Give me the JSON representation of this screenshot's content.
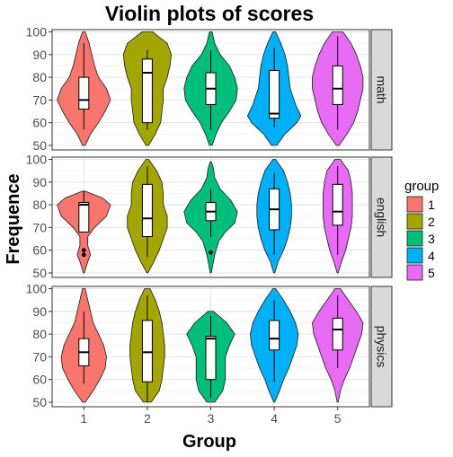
{
  "chart_data": {
    "type": "violin",
    "title": "Violin plots of scores",
    "xlabel": "Group",
    "ylabel": "Frequence",
    "categories": [
      "1",
      "2",
      "3",
      "4",
      "5"
    ],
    "group_colors": [
      "#F8766D",
      "#A3A500",
      "#00BF7D",
      "#00B0F6",
      "#E76BF3"
    ],
    "legend": {
      "title": "group",
      "position": "right",
      "labels": [
        "1",
        "2",
        "3",
        "4",
        "5"
      ]
    },
    "ylim": [
      48,
      101
    ],
    "yticks": [
      50,
      60,
      70,
      80,
      90,
      100
    ],
    "grid": true,
    "panels": [
      {
        "subject": "math",
        "groups": [
          {
            "group": "1",
            "min": 57,
            "q1": 66,
            "median": 70,
            "q3": 80,
            "max": 95,
            "lo": 50,
            "hi": 100,
            "outliers": [],
            "density": [
              [
                50,
                0.05
              ],
              [
                55,
                0.25
              ],
              [
                60,
                0.55
              ],
              [
                65,
                0.8
              ],
              [
                70,
                1.0
              ],
              [
                75,
                0.85
              ],
              [
                80,
                0.55
              ],
              [
                85,
                0.4
              ],
              [
                90,
                0.3
              ],
              [
                95,
                0.2
              ],
              [
                100,
                0.05
              ]
            ]
          },
          {
            "group": "2",
            "min": 57,
            "q1": 60,
            "median": 82,
            "q3": 88,
            "max": 92,
            "lo": 50,
            "hi": 100,
            "outliers": [],
            "density": [
              [
                50,
                0.05
              ],
              [
                55,
                0.3
              ],
              [
                60,
                0.5
              ],
              [
                65,
                0.55
              ],
              [
                70,
                0.6
              ],
              [
                75,
                0.6
              ],
              [
                80,
                0.75
              ],
              [
                85,
                0.85
              ],
              [
                90,
                0.9
              ],
              [
                95,
                0.75
              ],
              [
                100,
                0.2
              ]
            ]
          },
          {
            "group": "3",
            "min": 57,
            "q1": 68,
            "median": 75,
            "q3": 82,
            "max": 92,
            "lo": 50,
            "hi": 100,
            "outliers": [],
            "density": [
              [
                50,
                0.05
              ],
              [
                55,
                0.2
              ],
              [
                60,
                0.4
              ],
              [
                65,
                0.7
              ],
              [
                70,
                0.95
              ],
              [
                75,
                1.0
              ],
              [
                80,
                0.9
              ],
              [
                85,
                0.7
              ],
              [
                90,
                0.35
              ],
              [
                95,
                0.15
              ],
              [
                100,
                0.05
              ]
            ]
          },
          {
            "group": "4",
            "min": 58,
            "q1": 62,
            "median": 64,
            "q3": 83,
            "max": 93,
            "lo": 50,
            "hi": 100,
            "outliers": [],
            "density": [
              [
                50,
                0.1
              ],
              [
                55,
                0.4
              ],
              [
                60,
                0.85
              ],
              [
                63,
                1.0
              ],
              [
                68,
                0.8
              ],
              [
                75,
                0.6
              ],
              [
                80,
                0.55
              ],
              [
                85,
                0.5
              ],
              [
                90,
                0.4
              ],
              [
                95,
                0.25
              ],
              [
                100,
                0.05
              ]
            ]
          },
          {
            "group": "5",
            "min": 57,
            "q1": 68,
            "median": 75,
            "q3": 85,
            "max": 98,
            "lo": 50,
            "hi": 100,
            "outliers": [],
            "density": [
              [
                50,
                0.05
              ],
              [
                55,
                0.35
              ],
              [
                60,
                0.6
              ],
              [
                65,
                0.75
              ],
              [
                70,
                0.85
              ],
              [
                75,
                0.95
              ],
              [
                80,
                0.95
              ],
              [
                85,
                0.85
              ],
              [
                90,
                0.7
              ],
              [
                95,
                0.5
              ],
              [
                100,
                0.2
              ]
            ]
          }
        ]
      },
      {
        "subject": "english",
        "groups": [
          {
            "group": "1",
            "min": 68,
            "q1": 68,
            "median": 80,
            "q3": 81,
            "max": 86,
            "lo": 50,
            "hi": 86,
            "outliers": [
              58,
              60
            ],
            "density": [
              [
                50,
                0.02
              ],
              [
                55,
                0.15
              ],
              [
                58,
                0.25
              ],
              [
                62,
                0.15
              ],
              [
                66,
                0.15
              ],
              [
                70,
                0.4
              ],
              [
                75,
                0.85
              ],
              [
                80,
                1.0
              ],
              [
                83,
                0.7
              ],
              [
                86,
                0.05
              ]
            ]
          },
          {
            "group": "2",
            "min": 57,
            "q1": 66,
            "median": 74,
            "q3": 89,
            "max": 97,
            "lo": 50,
            "hi": 100,
            "outliers": [],
            "density": [
              [
                50,
                0.02
              ],
              [
                55,
                0.25
              ],
              [
                60,
                0.45
              ],
              [
                65,
                0.6
              ],
              [
                70,
                0.75
              ],
              [
                75,
                0.75
              ],
              [
                80,
                0.6
              ],
              [
                85,
                0.6
              ],
              [
                90,
                0.55
              ],
              [
                95,
                0.35
              ],
              [
                100,
                0.05
              ]
            ]
          },
          {
            "group": "3",
            "min": 66,
            "q1": 73,
            "median": 77,
            "q3": 81,
            "max": 87,
            "lo": 50,
            "hi": 99,
            "outliers": [
              59
            ],
            "density": [
              [
                50,
                0.02
              ],
              [
                58,
                0.15
              ],
              [
                64,
                0.3
              ],
              [
                68,
                0.55
              ],
              [
                72,
                0.9
              ],
              [
                77,
                1.0
              ],
              [
                82,
                0.75
              ],
              [
                87,
                0.35
              ],
              [
                92,
                0.15
              ],
              [
                96,
                0.1
              ],
              [
                99,
                0.02
              ]
            ]
          },
          {
            "group": "4",
            "min": 58,
            "q1": 69,
            "median": 78,
            "q3": 87,
            "max": 94,
            "lo": 50,
            "hi": 100,
            "outliers": [],
            "density": [
              [
                50,
                0.02
              ],
              [
                55,
                0.15
              ],
              [
                60,
                0.35
              ],
              [
                65,
                0.5
              ],
              [
                70,
                0.6
              ],
              [
                75,
                0.65
              ],
              [
                80,
                0.65
              ],
              [
                85,
                0.6
              ],
              [
                90,
                0.5
              ],
              [
                95,
                0.35
              ],
              [
                100,
                0.05
              ]
            ]
          },
          {
            "group": "5",
            "min": 58,
            "q1": 71,
            "median": 77,
            "q3": 89,
            "max": 97,
            "lo": 50,
            "hi": 100,
            "outliers": [],
            "density": [
              [
                50,
                0.02
              ],
              [
                55,
                0.15
              ],
              [
                60,
                0.3
              ],
              [
                65,
                0.4
              ],
              [
                70,
                0.5
              ],
              [
                75,
                0.55
              ],
              [
                80,
                0.55
              ],
              [
                85,
                0.55
              ],
              [
                90,
                0.5
              ],
              [
                95,
                0.4
              ],
              [
                100,
                0.1
              ]
            ]
          }
        ]
      },
      {
        "subject": "physics",
        "groups": [
          {
            "group": "1",
            "min": 58,
            "q1": 66,
            "median": 72,
            "q3": 78,
            "max": 90,
            "lo": 50,
            "hi": 100,
            "outliers": [],
            "density": [
              [
                50,
                0.05
              ],
              [
                55,
                0.35
              ],
              [
                60,
                0.6
              ],
              [
                65,
                0.8
              ],
              [
                70,
                0.85
              ],
              [
                75,
                0.75
              ],
              [
                80,
                0.55
              ],
              [
                85,
                0.35
              ],
              [
                90,
                0.25
              ],
              [
                95,
                0.15
              ],
              [
                100,
                0.05
              ]
            ]
          },
          {
            "group": "2",
            "min": 50,
            "q1": 59,
            "median": 72,
            "q3": 86,
            "max": 97,
            "lo": 50,
            "hi": 100,
            "outliers": [],
            "density": [
              [
                50,
                0.15
              ],
              [
                55,
                0.45
              ],
              [
                60,
                0.55
              ],
              [
                65,
                0.6
              ],
              [
                70,
                0.65
              ],
              [
                75,
                0.65
              ],
              [
                80,
                0.6
              ],
              [
                85,
                0.55
              ],
              [
                90,
                0.45
              ],
              [
                95,
                0.3
              ],
              [
                100,
                0.1
              ]
            ]
          },
          {
            "group": "3",
            "min": 52,
            "q1": 60,
            "median": 78,
            "q3": 79,
            "max": 88,
            "lo": 50,
            "hi": 90,
            "outliers": [],
            "density": [
              [
                50,
                0.15
              ],
              [
                55,
                0.45
              ],
              [
                60,
                0.55
              ],
              [
                65,
                0.55
              ],
              [
                70,
                0.55
              ],
              [
                75,
                0.7
              ],
              [
                80,
                0.9
              ],
              [
                85,
                0.6
              ],
              [
                90,
                0.1
              ]
            ]
          },
          {
            "group": "4",
            "min": 59,
            "q1": 73,
            "median": 78,
            "q3": 86,
            "max": 95,
            "lo": 50,
            "hi": 100,
            "outliers": [],
            "density": [
              [
                50,
                0.02
              ],
              [
                55,
                0.2
              ],
              [
                60,
                0.35
              ],
              [
                65,
                0.55
              ],
              [
                70,
                0.7
              ],
              [
                75,
                0.85
              ],
              [
                80,
                0.9
              ],
              [
                85,
                0.8
              ],
              [
                90,
                0.6
              ],
              [
                95,
                0.35
              ],
              [
                100,
                0.05
              ]
            ]
          },
          {
            "group": "5",
            "min": 65,
            "q1": 73,
            "median": 82,
            "q3": 87,
            "max": 97,
            "lo": 50,
            "hi": 100,
            "outliers": [],
            "density": [
              [
                50,
                0.02
              ],
              [
                55,
                0.1
              ],
              [
                60,
                0.25
              ],
              [
                65,
                0.45
              ],
              [
                70,
                0.6
              ],
              [
                75,
                0.75
              ],
              [
                80,
                0.9
              ],
              [
                85,
                0.95
              ],
              [
                90,
                0.7
              ],
              [
                95,
                0.4
              ],
              [
                100,
                0.1
              ]
            ]
          }
        ]
      }
    ]
  }
}
